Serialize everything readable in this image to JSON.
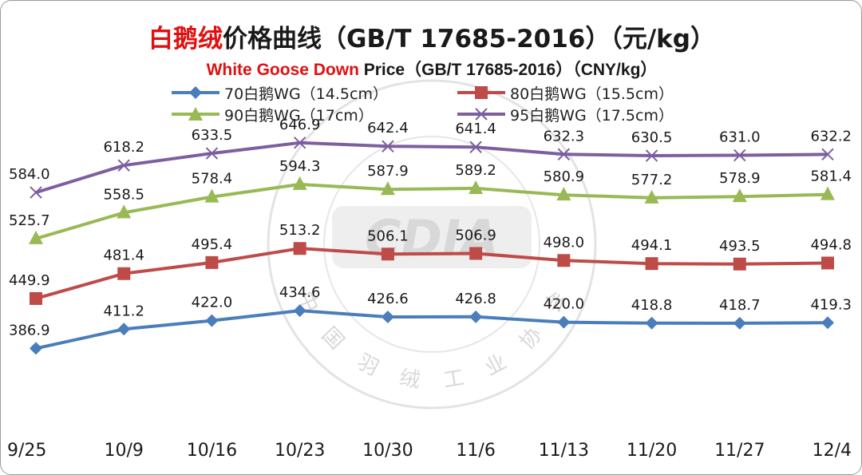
{
  "title": {
    "cn_highlight": "白鹅绒",
    "cn_rest": "价格曲线（GB/T 17685-2016）（元/kg）",
    "en_highlight": "White Goose Down",
    "en_rest": " Price（GB/T 17685-2016）（CNY/kg）"
  },
  "watermark": {
    "bottom": "中国羽绒工业协会",
    "logo": "CDIA"
  },
  "chart_data": {
    "type": "line",
    "categories": [
      "9/25",
      "10/9",
      "10/16",
      "10/23",
      "10/30",
      "11/6",
      "11/13",
      "11/20",
      "11/27",
      "12/4"
    ],
    "ylim": [
      360,
      680
    ],
    "grid": false,
    "legend_position": "top",
    "series": [
      {
        "name": "70白鹅WG（14.5cm）",
        "color": "#4a7ebb",
        "marker": "diamond",
        "values": [
          386.9,
          411.2,
          422.0,
          434.6,
          426.6,
          426.8,
          420.0,
          418.8,
          418.7,
          419.3
        ],
        "labels": [
          "386.9",
          "411.2",
          "422.0",
          "434.6",
          "426.6",
          "426.8",
          "420.0",
          "418.8",
          "418.7",
          "419.3"
        ]
      },
      {
        "name": "80白鹅WG（15.5cm）",
        "color": "#be4b48",
        "marker": "square",
        "values": [
          449.9,
          481.4,
          495.4,
          513.2,
          506.1,
          506.9,
          498.0,
          494.1,
          493.5,
          494.8
        ],
        "labels": [
          "449.9",
          "481.4",
          "495.4",
          "513.2",
          "506.1",
          "506.9",
          "498.0",
          "494.1",
          "493.5",
          "494.8"
        ]
      },
      {
        "name": "90白鹅WG（17cm）",
        "color": "#98b954",
        "marker": "triangle",
        "values": [
          525.7,
          558.5,
          578.4,
          594.3,
          587.9,
          589.2,
          580.9,
          577.2,
          578.9,
          581.4
        ],
        "labels": [
          "525.7",
          "558.5",
          "578.4",
          "594.3",
          "587.9",
          "589.2",
          "580.9",
          "577.2",
          "578.9",
          "581.4"
        ]
      },
      {
        "name": "95白鹅WG（17.5cm）",
        "color": "#7d5fa0",
        "marker": "x",
        "values": [
          584.0,
          618.2,
          633.5,
          646.9,
          642.4,
          641.4,
          632.3,
          630.5,
          631.0,
          632.2
        ],
        "labels": [
          "584.0",
          "618.2",
          "633.5",
          "646.9",
          "642.4",
          "641.4",
          "632.3",
          "630.5",
          "631.0",
          "632.2"
        ]
      }
    ]
  }
}
